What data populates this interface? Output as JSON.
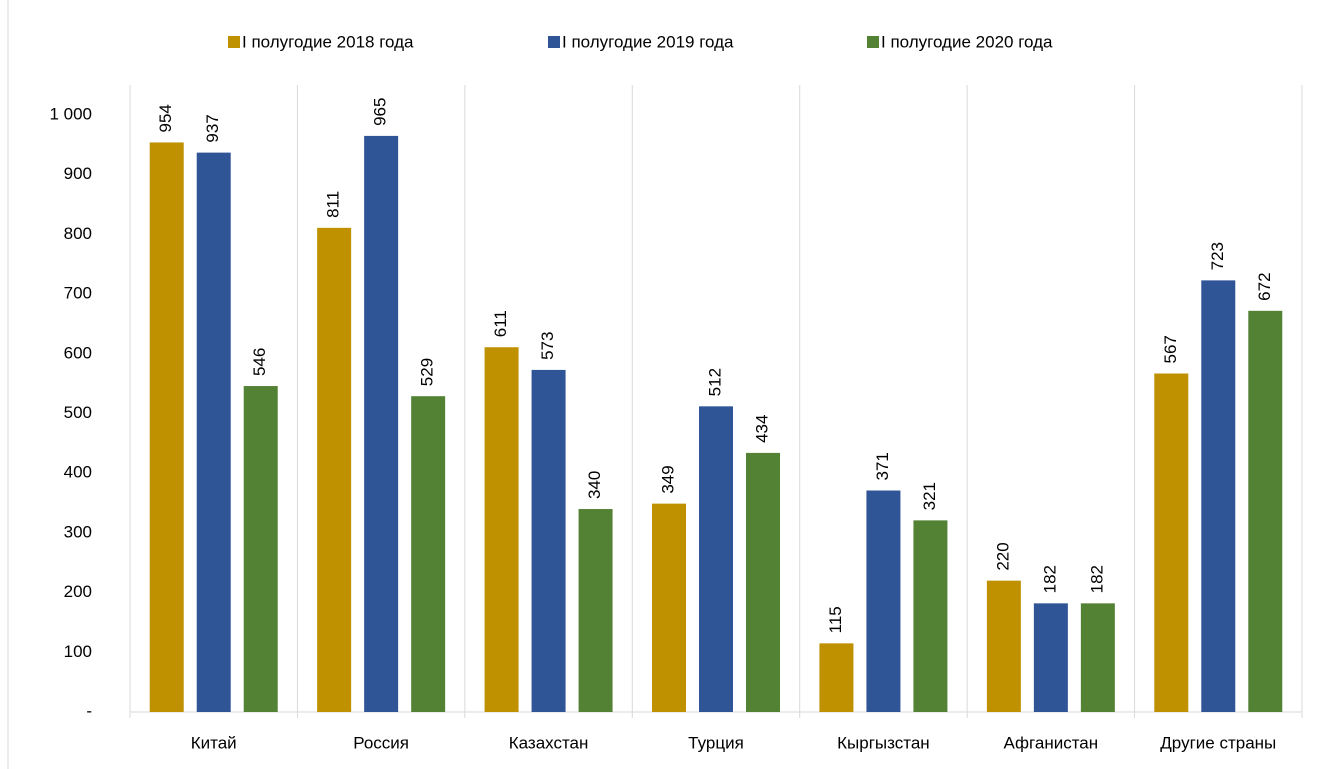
{
  "chart_data": {
    "type": "bar",
    "categories": [
      "Китай",
      "Россия",
      "Казахстан",
      "Турция",
      "Кыргызстан",
      "Афганистан",
      "Другие страны"
    ],
    "series": [
      {
        "name": "I полугодие 2018 года",
        "color": "#bf9000",
        "values": [
          954,
          811,
          611,
          349,
          115,
          220,
          567
        ]
      },
      {
        "name": "I полугодие 2019 года",
        "color": "#2f5597",
        "values": [
          937,
          965,
          573,
          512,
          371,
          182,
          723
        ]
      },
      {
        "name": "I полугодие 2020 года",
        "color": "#548235",
        "values": [
          546,
          529,
          340,
          434,
          321,
          182,
          672
        ]
      }
    ],
    "ylim": [
      0,
      1000
    ],
    "yticks": [
      {
        "value": 0,
        "label": "-"
      },
      100,
      200,
      300,
      400,
      500,
      600,
      700,
      800,
      900,
      {
        "value": 1000,
        "label": "1 000"
      }
    ],
    "legend": "top"
  }
}
